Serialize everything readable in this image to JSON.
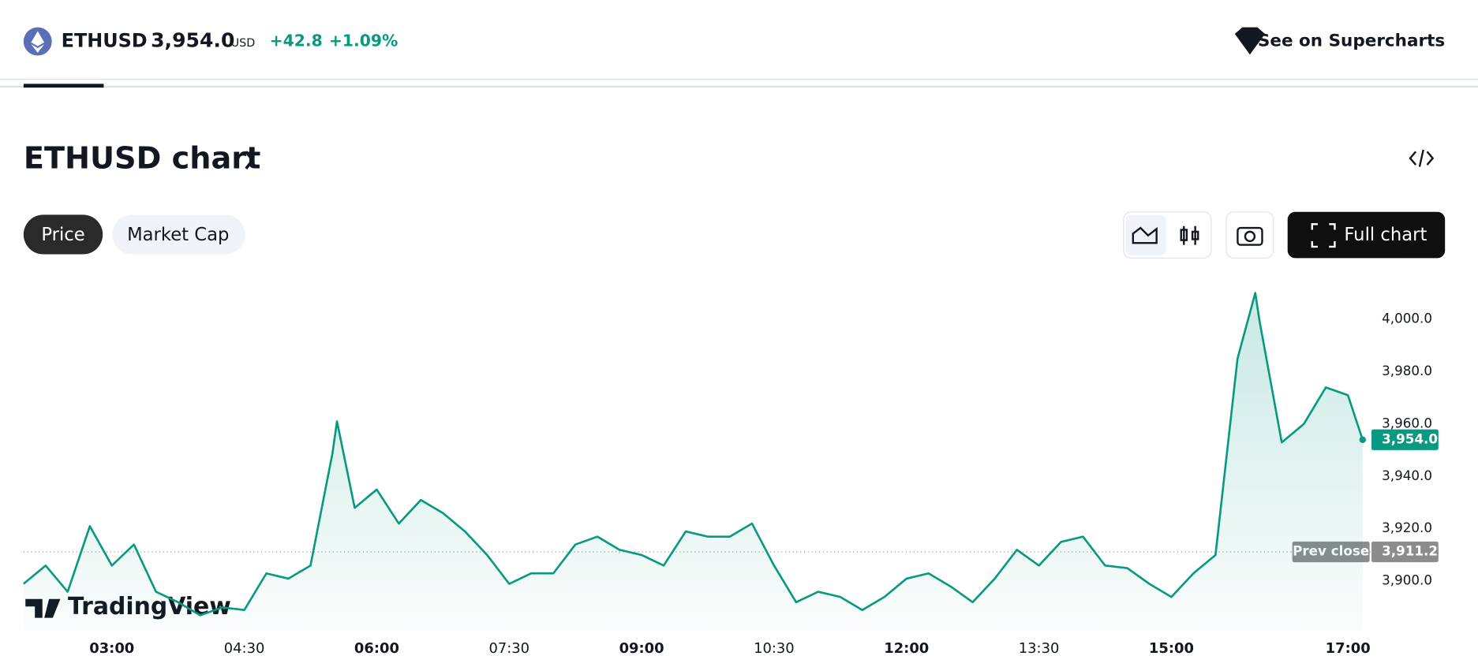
{
  "header": {
    "symbol": "ETHUSD",
    "price": "3,954.0",
    "currency": "USD",
    "change": "+42.8",
    "change_percent": "+1.09%",
    "supercharts": "See on Supercharts"
  },
  "title": "ETHUSD chart",
  "tabs": [
    "Price",
    "Market Cap"
  ],
  "full_chart": "Full chart",
  "watermark": "TradingView",
  "chart_data": {
    "type": "line",
    "color": "#089981",
    "x": [
      "02:00",
      "02:15",
      "02:30",
      "02:45",
      "03:00",
      "03:15",
      "03:30",
      "03:45",
      "04:00",
      "04:15",
      "04:30",
      "04:45",
      "05:00",
      "05:15",
      "05:30",
      "05:33",
      "05:45",
      "06:00",
      "06:15",
      "06:30",
      "06:45",
      "07:00",
      "07:15",
      "07:30",
      "07:45",
      "08:00",
      "08:15",
      "08:30",
      "08:45",
      "09:00",
      "09:15",
      "09:30",
      "09:45",
      "10:00",
      "10:15",
      "10:30",
      "10:45",
      "11:00",
      "11:15",
      "11:30",
      "11:45",
      "12:00",
      "12:15",
      "12:30",
      "12:45",
      "13:00",
      "13:15",
      "13:30",
      "13:45",
      "14:00",
      "14:15",
      "14:30",
      "14:45",
      "15:00",
      "15:15",
      "15:30",
      "15:45",
      "15:57",
      "16:00",
      "16:15",
      "16:30",
      "16:45",
      "17:00",
      "17:10"
    ],
    "values": [
      3899,
      3906,
      3896,
      3921,
      3906,
      3914,
      3896,
      3892,
      3887,
      3890,
      3889,
      3903,
      3901,
      3906,
      3949,
      3961,
      3928,
      3935,
      3922,
      3931,
      3926,
      3919,
      3910,
      3899,
      3903,
      3903,
      3914,
      3917,
      3912,
      3910,
      3906,
      3919,
      3917,
      3917,
      3922,
      3906,
      3892,
      3896,
      3894,
      3889,
      3894,
      3901,
      3903,
      3898,
      3892,
      3901,
      3912,
      3906,
      3915,
      3917,
      3906,
      3905,
      3899,
      3894,
      3903,
      3910,
      3985,
      4010,
      3999,
      3953,
      3960,
      3974,
      3971,
      3954
    ],
    "xlim": [
      "02:00",
      "17:16"
    ],
    "xticks": [
      "03:00",
      "04:30",
      "06:00",
      "07:30",
      "09:00",
      "10:30",
      "12:00",
      "13:30",
      "15:00",
      "17:00"
    ],
    "ylim": [
      3881,
      4014
    ],
    "yticks": [
      {
        "value": 3900,
        "label": "3,900.0"
      },
      {
        "value": 3920,
        "label": "3,920.0"
      },
      {
        "value": 3940,
        "label": "3,940.0"
      },
      {
        "value": 3960,
        "label": "3,960.0"
      },
      {
        "value": 3980,
        "label": "3,980.0"
      },
      {
        "value": 4000,
        "label": "4,000.0"
      }
    ],
    "prev_close_title": "Prev close",
    "prev_close": {
      "value": 3911.2,
      "label": "3,911.2"
    }
  }
}
